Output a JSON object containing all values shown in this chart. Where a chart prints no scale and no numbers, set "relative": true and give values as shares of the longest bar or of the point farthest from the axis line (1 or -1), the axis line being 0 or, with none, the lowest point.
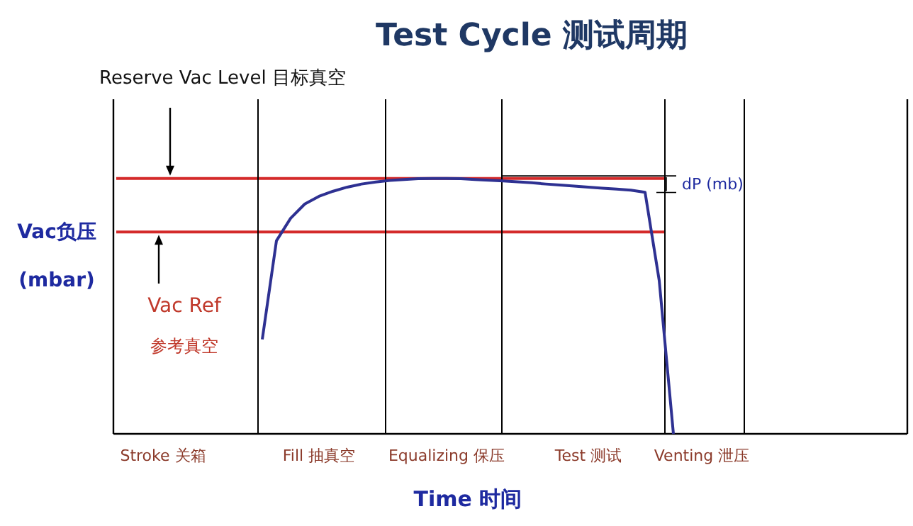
{
  "chart_data": {
    "type": "line",
    "title": "Test Cycle    测试周期",
    "xlabel": "Time 时间",
    "ylabel": "Vac负压\n(mbar)",
    "relative": true,
    "categories": [
      null,
      null,
      null,
      "Stroke 关箱",
      null,
      null,
      null,
      null,
      null,
      null,
      null,
      null,
      null,
      null,
      "Fill 抽真空",
      null,
      null,
      null,
      null,
      null,
      null,
      null,
      null,
      "Equalizing 保压",
      null,
      null,
      null,
      null,
      null,
      null,
      null,
      null,
      null,
      "Test 测试",
      null,
      null,
      null,
      null,
      null,
      null,
      null,
      "Venting 泄压",
      null,
      null,
      null,
      null,
      null,
      null,
      null,
      null,
      null,
      null,
      null,
      null,
      null,
      null
    ],
    "series": [
      {
        "color": "#2e3192",
        "values": [
          null,
          null,
          null,
          null,
          null,
          null,
          null,
          null,
          null,
          null,
          0.37,
          0.756,
          0.844,
          0.9,
          0.93,
          0.95,
          0.966,
          0.978,
          0.986,
          0.992,
          0.996,
          0.999,
          1,
          1,
          0.999,
          0.996,
          0.993,
          0.99,
          0.987,
          0.983,
          0.978,
          0.974,
          0.97,
          0.966,
          0.962,
          0.958,
          0.954,
          0.946,
          0.6,
          0,
          null,
          null,
          null,
          null,
          null,
          null,
          null,
          null,
          null,
          null,
          null,
          null,
          null,
          null,
          null,
          null
        ]
      }
    ],
    "ref_lines": [
      {
        "axis": "y",
        "value": 1.0,
        "color": "#d42a2a"
      },
      {
        "axis": "y",
        "value": 0.79,
        "color": "#d42a2a"
      }
    ],
    "annotations": [
      "Reserve Vac  Level 目标真空",
      "Vac Ref\n参考真空",
      {
        "text": "dP (mb)",
        "y": 0.98
      }
    ],
    "marker": "none",
    "line_style": "solid"
  }
}
